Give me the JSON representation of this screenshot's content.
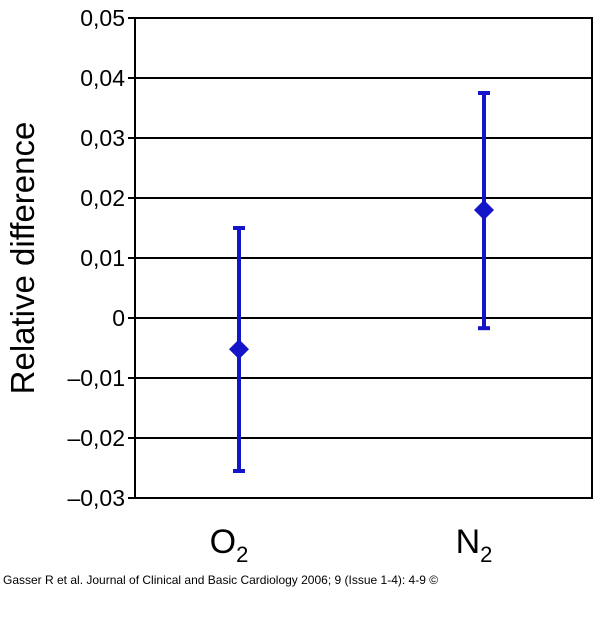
{
  "chart_data": {
    "type": "scatter",
    "ylabel": "Relative difference",
    "xlabel": "",
    "ylim": [
      -0.03,
      0.05
    ],
    "yticks": [
      -0.03,
      -0.02,
      -0.01,
      0,
      0.01,
      0.02,
      0.03,
      0.04,
      0.05
    ],
    "ytick_labels": [
      "–0,03",
      "–0,02",
      "–0,01",
      "0",
      "0,01",
      "0,02",
      "0,03",
      "0,04",
      "0,05"
    ],
    "grid": true,
    "categories": [
      {
        "main": "O",
        "sub": "2"
      },
      {
        "main": "N",
        "sub": "2"
      }
    ],
    "series": [
      {
        "color": "#1414c8",
        "marker": "diamond",
        "values": [
          -0.0052,
          0.018
        ],
        "error_low": [
          -0.0255,
          -0.0017
        ],
        "error_high": [
          0.015,
          0.0375
        ]
      }
    ]
  },
  "caption": "Gasser R et al. Journal of Clinical and Basic Cardiology 2006; 9 (Issue 1-4): 4-9 ©"
}
